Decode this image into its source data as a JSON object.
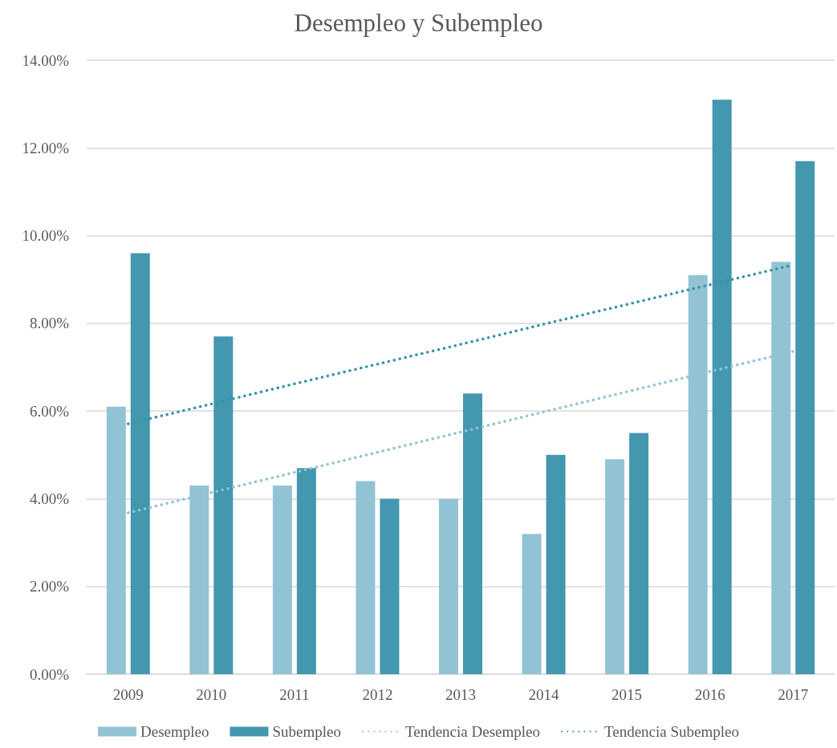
{
  "chart_data": {
    "type": "bar",
    "title": "Desempleo y Subempleo",
    "categories": [
      "2009",
      "2010",
      "2011",
      "2012",
      "2013",
      "2014",
      "2015",
      "2016",
      "2017"
    ],
    "series": [
      {
        "name": "Desempleo",
        "color": "#92c3d4",
        "values": [
          6.1,
          4.3,
          4.3,
          4.4,
          4.0,
          3.2,
          4.9,
          9.1,
          9.4
        ]
      },
      {
        "name": "Subempleo",
        "color": "#4397ae",
        "values": [
          9.6,
          7.7,
          4.7,
          4.0,
          6.4,
          5.0,
          5.5,
          13.1,
          11.7
        ]
      },
      {
        "name": "Tendencia Desempleo",
        "type": "line",
        "color": "#92c3d4",
        "values": [
          3.68,
          4.14,
          4.6,
          5.06,
          5.52,
          5.98,
          6.44,
          6.9,
          7.36
        ]
      },
      {
        "name": "Tendencia Subempleo",
        "type": "line",
        "color": "#3a91a8",
        "values": [
          5.71,
          6.16,
          6.62,
          7.07,
          7.52,
          7.98,
          8.43,
          8.88,
          9.33
        ]
      }
    ],
    "ylim": [
      0,
      14
    ],
    "yticks": [
      {
        "value": 0,
        "label": "0.00%"
      },
      {
        "value": 2,
        "label": "2.00%"
      },
      {
        "value": 4,
        "label": "4.00%"
      },
      {
        "value": 6,
        "label": "6.00%"
      },
      {
        "value": 8,
        "label": "8.00%"
      },
      {
        "value": 10,
        "label": "10.00%"
      },
      {
        "value": 12,
        "label": "12.00%"
      },
      {
        "value": 14,
        "label": "14.00%"
      }
    ],
    "grid": "y",
    "legend": "bottom",
    "marker": "none",
    "line_style": "dotted"
  }
}
